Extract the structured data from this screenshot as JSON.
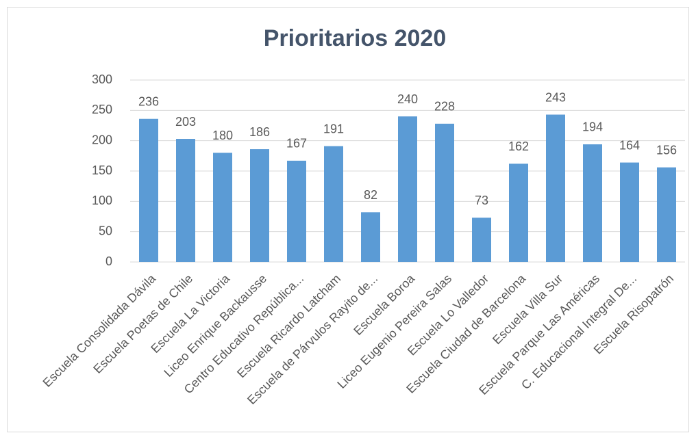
{
  "chart_data": {
    "type": "bar",
    "title": "Prioritarios 2020",
    "categories": [
      "Escuela Consolidada Dávila",
      "Escuela Poetas de Chile",
      "Escuela La Victoria",
      "Liceo Enrique Backausse",
      "Centro Educativo República...",
      "Escuela Ricardo Latcham",
      "Escuela de Párvulos Rayito de...",
      "Escuela Boroa",
      "Liceo Eugenio Pereira Salas",
      "Escuela Lo Valledor",
      "Escuela Ciudad de Barcelona",
      "Escuela Villa Sur",
      "Escuela Parque Las Américas",
      "C. Educacional Integral De...",
      "Escuela Risopatrón"
    ],
    "values": [
      236,
      203,
      180,
      186,
      167,
      191,
      82,
      240,
      228,
      73,
      162,
      243,
      194,
      164,
      156
    ],
    "color": "#5b9bd5",
    "ylim": [
      0,
      300
    ],
    "yticks": [
      0,
      50,
      100,
      150,
      200,
      250,
      300
    ],
    "grid": true
  }
}
